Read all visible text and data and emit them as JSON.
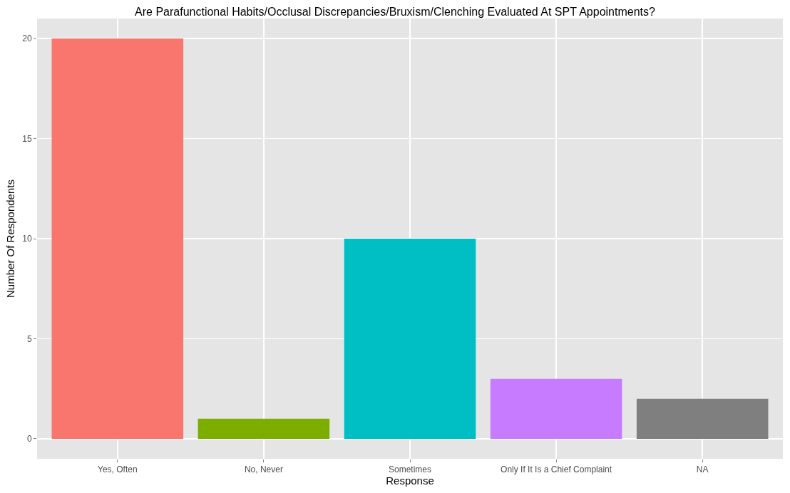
{
  "chart_data": {
    "type": "bar",
    "title": "Are Parafunctional Habits/Occlusal Discrepancies/Bruxism/Clenching Evaluated At SPT Appointments?",
    "xlabel": "Response",
    "ylabel": "Number Of Respondents",
    "categories": [
      "Yes, Often",
      "No, Never",
      "Sometimes",
      "Only If It Is a Chief Complaint",
      "NA"
    ],
    "values": [
      20,
      1,
      10,
      3,
      2
    ],
    "colors": [
      "#f8766d",
      "#7cae00",
      "#00bfc4",
      "#c77cff",
      "#7f7f7f"
    ],
    "ylim": [
      -1,
      21
    ],
    "yticks": [
      0,
      5,
      10,
      15,
      20
    ],
    "grid": true
  }
}
